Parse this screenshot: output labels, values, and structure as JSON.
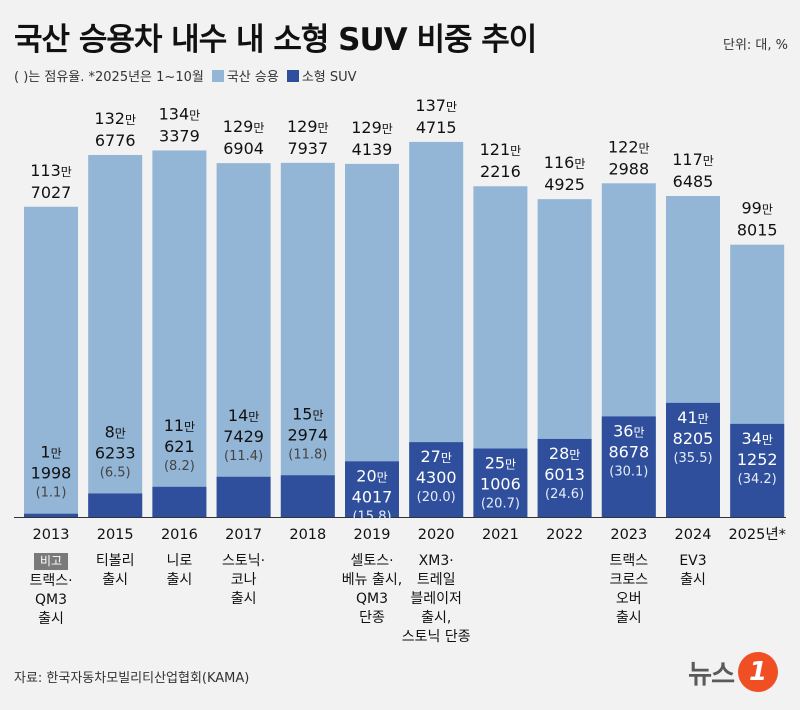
{
  "header": {
    "title": "국산 승용차 내수 내 소형 SUV 비중 추이",
    "unit": "단위: 대, %"
  },
  "legend": {
    "note": "( )는 점유율.  *2025년은 1~10월",
    "total_label": "국산 승용",
    "suv_label": "소형 SUV"
  },
  "colors": {
    "total": "#93b5d6",
    "suv": "#2f4f9c",
    "background": "#f2f2f2"
  },
  "chart_data": {
    "type": "bar",
    "title": "국산 승용차 내수 내 소형 SUV 비중 추이",
    "categories": [
      "2013",
      "2015",
      "2016",
      "2017",
      "2018",
      "2019",
      "2020",
      "2021",
      "2022",
      "2023",
      "2024",
      "2025년*"
    ],
    "series": [
      {
        "name": "국산 승용",
        "values": [
          1137027,
          1326776,
          1343379,
          1296904,
          1297937,
          1294139,
          1374715,
          1212216,
          1164925,
          1222988,
          1176485,
          998015
        ],
        "labels": [
          [
            "113만",
            "7027"
          ],
          [
            "132만",
            "6776"
          ],
          [
            "134만",
            "3379"
          ],
          [
            "129만",
            "6904"
          ],
          [
            "129만",
            "7937"
          ],
          [
            "129만",
            "4139"
          ],
          [
            "137만",
            "4715"
          ],
          [
            "121만",
            "2216"
          ],
          [
            "116만",
            "4925"
          ],
          [
            "122만",
            "2988"
          ],
          [
            "117만",
            "6485"
          ],
          [
            "99만",
            "8015"
          ]
        ]
      },
      {
        "name": "소형 SUV",
        "values": [
          11998,
          86233,
          110621,
          147429,
          152974,
          204017,
          274300,
          251006,
          286013,
          368678,
          418205,
          341252
        ],
        "labels": [
          [
            "1만",
            "1998"
          ],
          [
            "8만",
            "6233"
          ],
          [
            "11만",
            "621"
          ],
          [
            "14만",
            "7429"
          ],
          [
            "15만",
            "2974"
          ],
          [
            "20만",
            "4017"
          ],
          [
            "27만",
            "4300"
          ],
          [
            "25만",
            "1006"
          ],
          [
            "28만",
            "6013"
          ],
          [
            "36만",
            "8678"
          ],
          [
            "41만",
            "8205"
          ],
          [
            "34만",
            "1252"
          ]
        ],
        "share_pct": [
          "(1.1)",
          "(6.5)",
          "(8.2)",
          "(11.4)",
          "(11.8)",
          "(15.8)",
          "(20.0)",
          "(20.7)",
          "(24.6)",
          "(30.1)",
          "(35.5)",
          "(34.2)"
        ]
      }
    ],
    "ylim": [
      0,
      1400000
    ],
    "xlabel": "",
    "ylabel": ""
  },
  "notes": [
    {
      "badge": "비고",
      "text": "트랙스·\nQM3\n출시"
    },
    {
      "text": "티볼리\n출시"
    },
    {
      "text": "니로\n출시"
    },
    {
      "text": "스토닉·\n코나\n출시"
    },
    {
      "text": ""
    },
    {
      "text": "셀토스·\n베뉴 출시,\nQM3\n단종"
    },
    {
      "text": "XM3·\n트레일\n블레이저\n출시,\n스토닉 단종"
    },
    {
      "text": ""
    },
    {
      "text": ""
    },
    {
      "text": "트랙스\n크로스\n오버\n출시"
    },
    {
      "text": "EV3\n출시"
    },
    {
      "text": ""
    }
  ],
  "footer": {
    "source": "자료: 한국자동차모빌리티산업협회(KAMA)",
    "logo_text": "뉴스",
    "logo_mark": "1"
  }
}
